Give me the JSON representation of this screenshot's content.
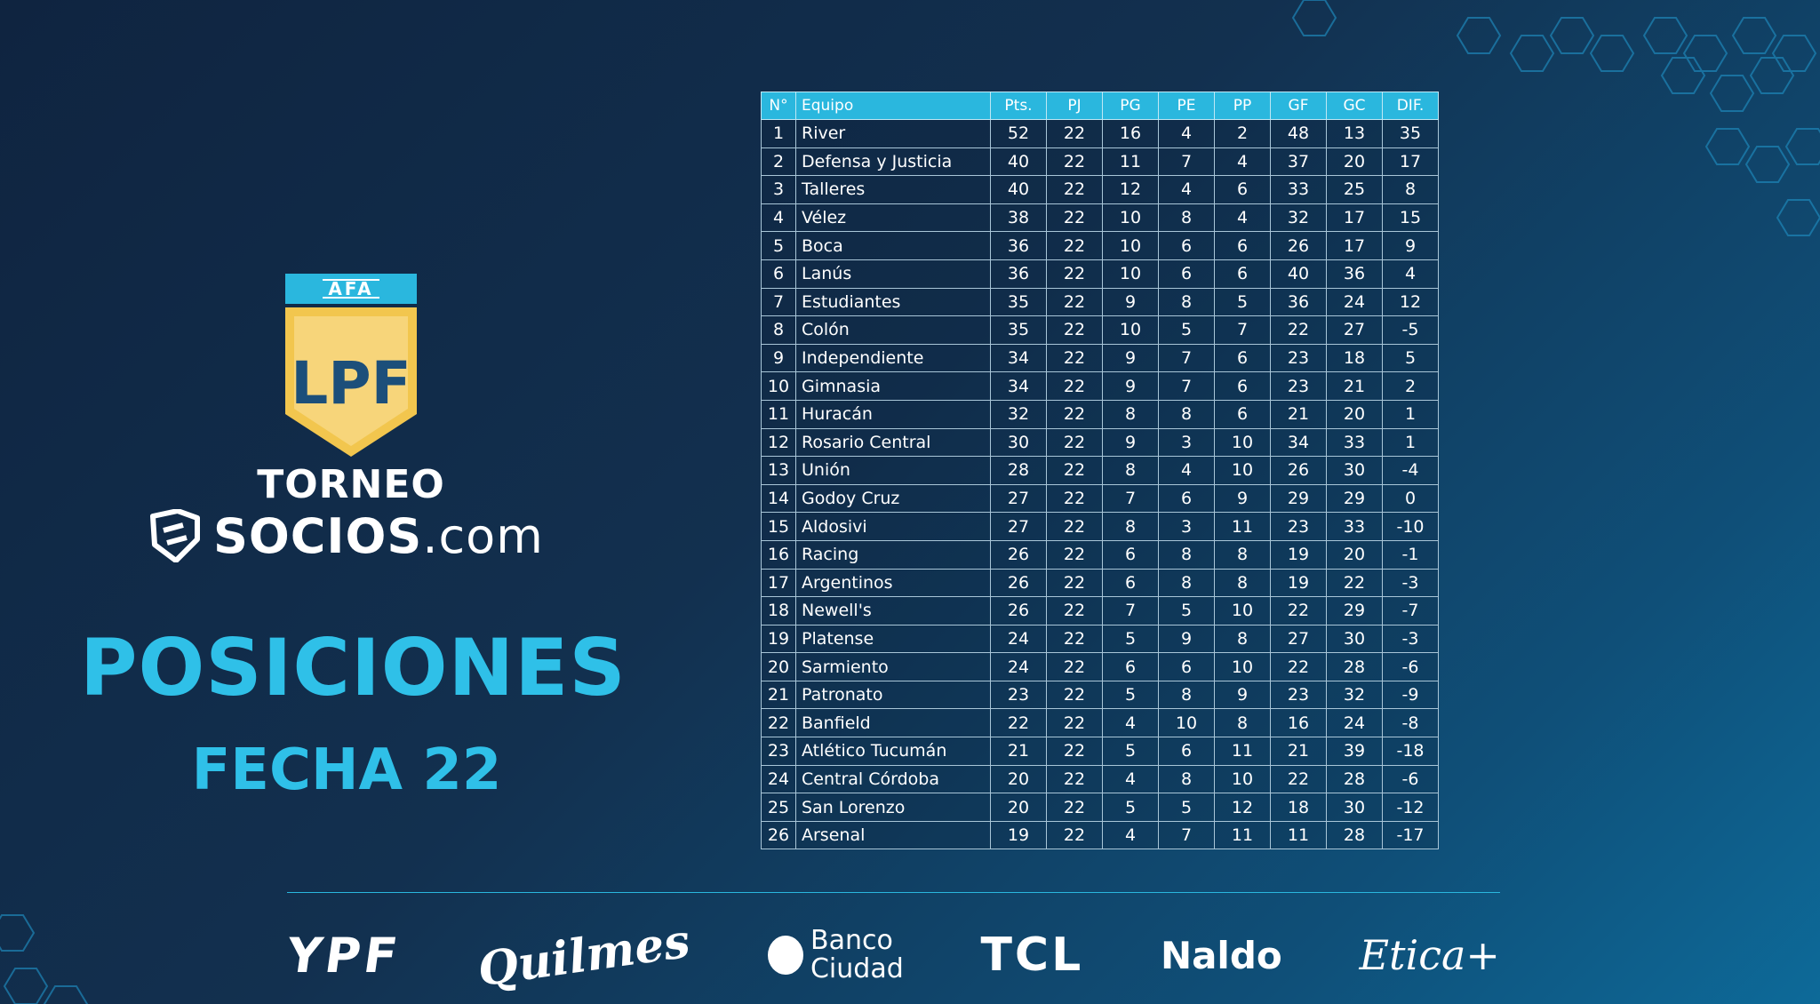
{
  "brand": {
    "afa_label": "AFA",
    "lpf_monogram": "LPF",
    "torneo": "TORNEO",
    "socios_main": "SOCIOS",
    "socios_domain": ".com",
    "title": "POSICIONES",
    "subtitle": "FECHA 22"
  },
  "colors": {
    "accent": "#2ab7de",
    "shield_gold": "#f2c64e",
    "shield_light": "#f7d57a",
    "monogram": "#1c4f7a"
  },
  "table": {
    "headers": [
      "N°",
      "Equipo",
      "Pts.",
      "PJ",
      "PG",
      "PE",
      "PP",
      "GF",
      "GC",
      "DIF."
    ],
    "rows": [
      [
        "1",
        "River",
        "52",
        "22",
        "16",
        "4",
        "2",
        "48",
        "13",
        "35"
      ],
      [
        "2",
        "Defensa y Justicia",
        "40",
        "22",
        "11",
        "7",
        "4",
        "37",
        "20",
        "17"
      ],
      [
        "3",
        "Talleres",
        "40",
        "22",
        "12",
        "4",
        "6",
        "33",
        "25",
        "8"
      ],
      [
        "4",
        "Vélez",
        "38",
        "22",
        "10",
        "8",
        "4",
        "32",
        "17",
        "15"
      ],
      [
        "5",
        "Boca",
        "36",
        "22",
        "10",
        "6",
        "6",
        "26",
        "17",
        "9"
      ],
      [
        "6",
        "Lanús",
        "36",
        "22",
        "10",
        "6",
        "6",
        "40",
        "36",
        "4"
      ],
      [
        "7",
        "Estudiantes",
        "35",
        "22",
        "9",
        "8",
        "5",
        "36",
        "24",
        "12"
      ],
      [
        "8",
        "Colón",
        "35",
        "22",
        "10",
        "5",
        "7",
        "22",
        "27",
        "-5"
      ],
      [
        "9",
        "Independiente",
        "34",
        "22",
        "9",
        "7",
        "6",
        "23",
        "18",
        "5"
      ],
      [
        "10",
        "Gimnasia",
        "34",
        "22",
        "9",
        "7",
        "6",
        "23",
        "21",
        "2"
      ],
      [
        "11",
        "Huracán",
        "32",
        "22",
        "8",
        "8",
        "6",
        "21",
        "20",
        "1"
      ],
      [
        "12",
        "Rosario Central",
        "30",
        "22",
        "9",
        "3",
        "10",
        "34",
        "33",
        "1"
      ],
      [
        "13",
        "Unión",
        "28",
        "22",
        "8",
        "4",
        "10",
        "26",
        "30",
        "-4"
      ],
      [
        "14",
        "Godoy Cruz",
        "27",
        "22",
        "7",
        "6",
        "9",
        "29",
        "29",
        "0"
      ],
      [
        "15",
        "Aldosivi",
        "27",
        "22",
        "8",
        "3",
        "11",
        "23",
        "33",
        "-10"
      ],
      [
        "16",
        "Racing",
        "26",
        "22",
        "6",
        "8",
        "8",
        "19",
        "20",
        "-1"
      ],
      [
        "17",
        "Argentinos",
        "26",
        "22",
        "6",
        "8",
        "8",
        "19",
        "22",
        "-3"
      ],
      [
        "18",
        "Newell's",
        "26",
        "22",
        "7",
        "5",
        "10",
        "22",
        "29",
        "-7"
      ],
      [
        "19",
        "Platense",
        "24",
        "22",
        "5",
        "9",
        "8",
        "27",
        "30",
        "-3"
      ],
      [
        "20",
        "Sarmiento",
        "24",
        "22",
        "6",
        "6",
        "10",
        "22",
        "28",
        "-6"
      ],
      [
        "21",
        "Patronato",
        "23",
        "22",
        "5",
        "8",
        "9",
        "23",
        "32",
        "-9"
      ],
      [
        "22",
        "Banfield",
        "22",
        "22",
        "4",
        "10",
        "8",
        "16",
        "24",
        "-8"
      ],
      [
        "23",
        "Atlético Tucumán",
        "21",
        "22",
        "5",
        "6",
        "11",
        "21",
        "39",
        "-18"
      ],
      [
        "24",
        "Central Córdoba",
        "20",
        "22",
        "4",
        "8",
        "10",
        "22",
        "28",
        "-6"
      ],
      [
        "25",
        "San Lorenzo",
        "20",
        "22",
        "5",
        "5",
        "12",
        "18",
        "30",
        "-12"
      ],
      [
        "26",
        "Arsenal",
        "19",
        "22",
        "4",
        "7",
        "11",
        "11",
        "28",
        "-17"
      ]
    ]
  },
  "sponsors": {
    "ypf": "YPF",
    "quilmes": "Quilmes",
    "banco_line1": "Banco",
    "banco_line2": "Ciudad",
    "tcl": "TCL",
    "naldo": "Naldo",
    "etica": "Etica+"
  }
}
